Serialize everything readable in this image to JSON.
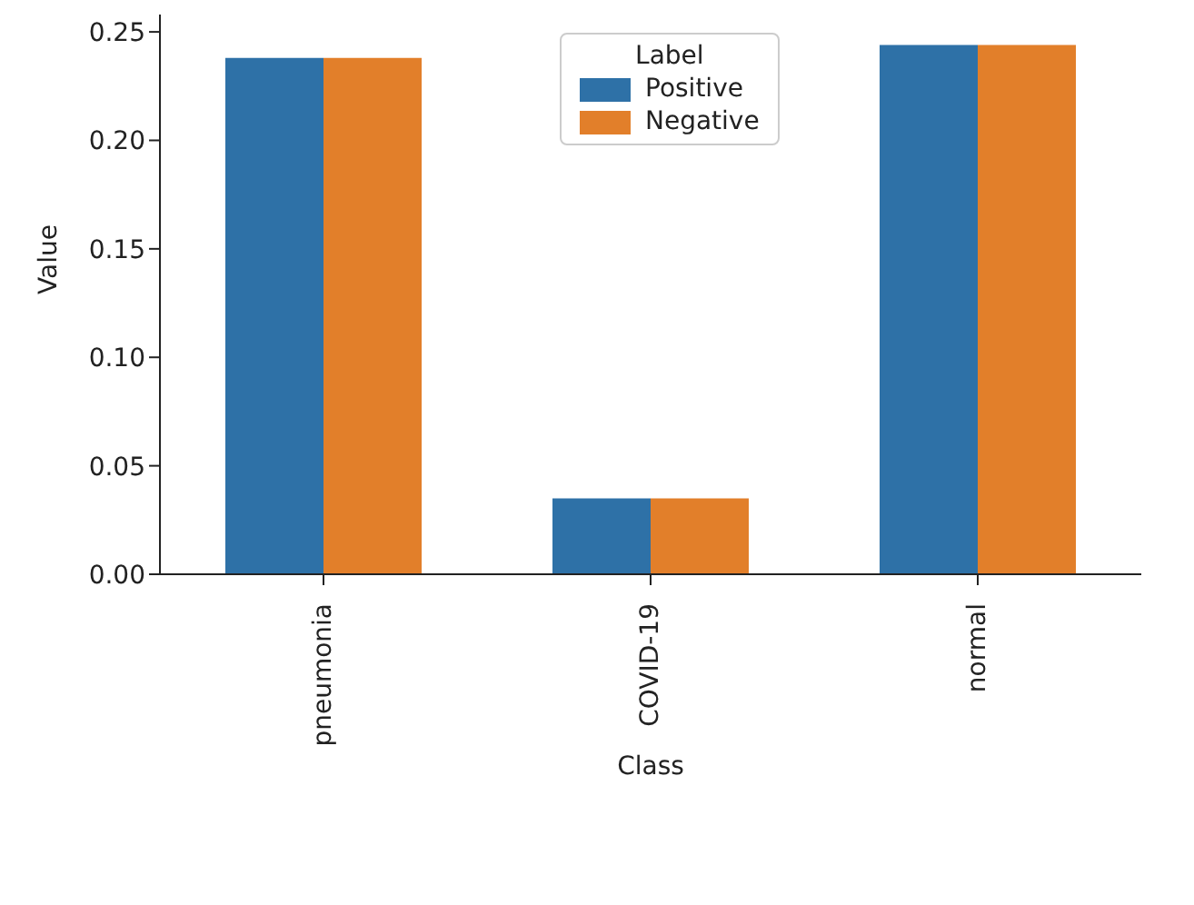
{
  "chart_data": {
    "type": "bar",
    "xlabel": "Class",
    "ylabel": "Value",
    "legend_title": "Label",
    "categories": [
      "pneumonia",
      "COVID-19",
      "normal"
    ],
    "series": [
      {
        "name": "Positive",
        "color": "#2e71a7",
        "values": [
          0.238,
          0.035,
          0.244
        ]
      },
      {
        "name": "Negative",
        "color": "#e27f2a",
        "values": [
          0.238,
          0.035,
          0.244
        ]
      }
    ],
    "ylim": [
      0,
      0.258
    ],
    "yticks": [
      {
        "value": 0,
        "label": "0.00"
      },
      {
        "value": 0.05,
        "label": "0.05"
      },
      {
        "value": 0.1,
        "label": "0.10"
      },
      {
        "value": 0.15,
        "label": "0.15"
      },
      {
        "value": 0.2,
        "label": "0.20"
      },
      {
        "value": 0.25,
        "label": "0.25"
      }
    ],
    "grid": false,
    "legend": "top"
  }
}
